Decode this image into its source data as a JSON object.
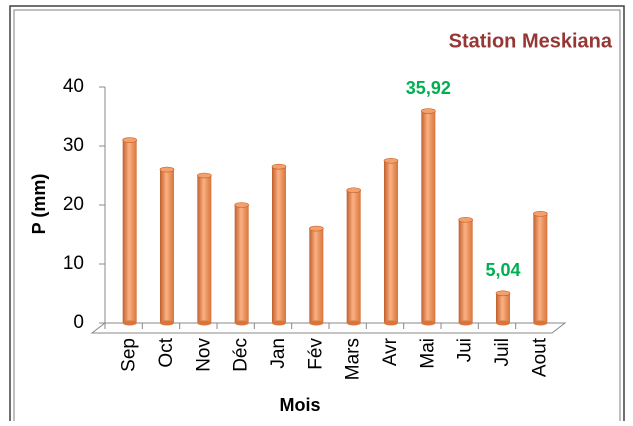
{
  "chart_data": {
    "type": "bar",
    "title": "Station Meskiana",
    "x_label": "Mois",
    "y_label": "P (mm)",
    "categories": [
      "Sep",
      "Oct",
      "Nov",
      "Déc",
      "Jan",
      "Fév",
      "Mars",
      "Avr",
      "Mai",
      "Jui",
      "Juil",
      "Aout"
    ],
    "values": [
      31,
      26,
      25,
      20,
      26.5,
      16,
      22.5,
      27.5,
      35.92,
      17.5,
      5.04,
      18.5
    ],
    "value_labels": [
      null,
      null,
      null,
      null,
      null,
      null,
      null,
      null,
      "35,92",
      null,
      "5,04",
      null
    ],
    "color": "#f79646",
    "ylim": [
      0,
      40
    ],
    "yticks": [
      0,
      10,
      20,
      30,
      40
    ],
    "grid": false
  }
}
